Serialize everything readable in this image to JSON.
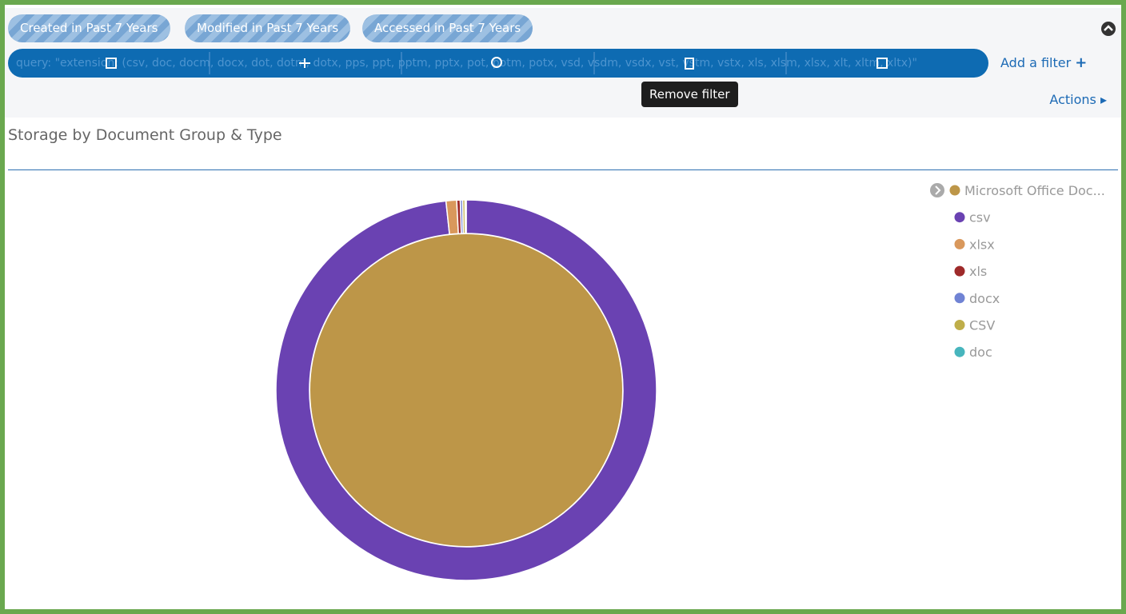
{
  "filters": {
    "pills": [
      "Created in Past 7 Years",
      "Modified in Past 7 Years",
      "Accessed in Past 7 Years"
    ],
    "query": "query: \"extension: (csv, doc, docm, docx, dot, dotm, dotx, pps, ppt, pptm, pptx, pot, potm, potx, vsd, vsdm, vsdx, vst, vstm, vstx, xls, xlsm, xlsx, xlt, xltm, xltx)\"",
    "add_filter": "Add a filter",
    "tooltip": "Remove filter",
    "actions": "Actions"
  },
  "chart_data": {
    "type": "pie",
    "title": "Storage by Document Group & Type",
    "rings": [
      {
        "categories": [
          "Microsoft Office Doc..."
        ],
        "values": [
          100
        ],
        "colors": [
          "#bd9648"
        ]
      },
      {
        "categories": [
          "csv",
          "xlsx",
          "xls",
          "docx",
          "CSV",
          "doc"
        ],
        "values": [
          98.3,
          0.9,
          0.3,
          0.2,
          0.2,
          0.1
        ],
        "colors": [
          "#6a42b2",
          "#d9985c",
          "#9e2a2a",
          "#7083d4",
          "#bfae4a",
          "#47b5bd"
        ]
      }
    ]
  }
}
